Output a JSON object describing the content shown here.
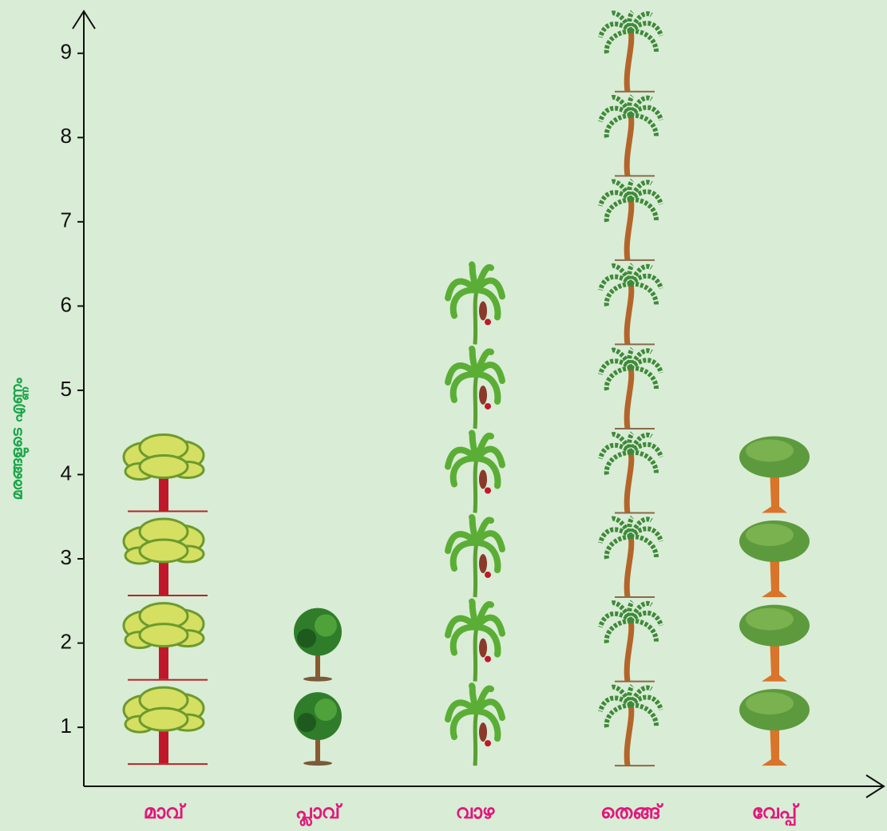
{
  "chart_data": {
    "type": "pictograph",
    "y_label": "മരങ്ങളുടെ എണ്ണം",
    "categories": [
      "മാവ്",
      "പ്ലാവ്",
      "വാഴ",
      "തെങ്ങ്",
      "വേപ്പ്"
    ],
    "values": [
      4,
      2,
      6,
      9,
      4
    ],
    "ylim": [
      0.3,
      9.5
    ],
    "yticks": [
      1,
      2,
      3,
      4,
      5,
      6,
      7,
      8,
      9
    ]
  }
}
